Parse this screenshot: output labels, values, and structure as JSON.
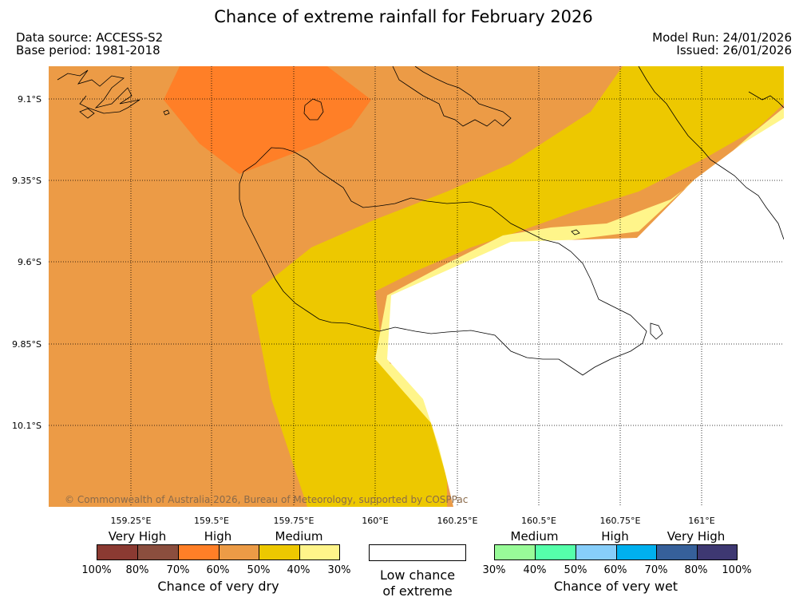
{
  "header": {
    "title": "Chance of extreme rainfall for February 2026",
    "data_source": "Data source: ACCESS-S2",
    "base_period": "Base period: 1981-2018",
    "model_run": "Model Run: 24/01/2026",
    "issued": "Issued: 26/01/2026"
  },
  "map": {
    "lat_labels": [
      "9.1°S",
      "9.35°S",
      "9.6°S",
      "9.85°S",
      "10.1°S"
    ],
    "lon_labels": [
      "159.25°E",
      "159.5°E",
      "159.75°E",
      "160°E",
      "160.25°E",
      "160.5°E",
      "160.75°E",
      "161°E"
    ],
    "copyright": "© Commonwealth of Australia 2026, Bureau of Meteorology, supported by COSPPac",
    "colors": {
      "dry_very_high": "#FF7F27",
      "dry_high": "#EC9B46",
      "dry_medium": "#EDC800",
      "dry_low": "#FFF58A",
      "land_outline": "#000000"
    }
  },
  "legend": {
    "dry": {
      "categories": [
        "Very High",
        "High",
        "Medium"
      ],
      "percents": [
        "100%",
        "80%",
        "70%",
        "60%",
        "50%",
        "40%",
        "30%"
      ],
      "colors": [
        "#8B3A32",
        "#8B4E3E",
        "#FF7F27",
        "#EC9B46",
        "#EDC800",
        "#FFF58A"
      ],
      "title": "Chance of very dry"
    },
    "low": {
      "title_line1": "Low chance",
      "title_line2": "of extreme",
      "color": "#FFFFFF"
    },
    "wet": {
      "categories": [
        "Medium",
        "High",
        "Very High"
      ],
      "percents": [
        "30%",
        "40%",
        "50%",
        "60%",
        "70%",
        "80%",
        "100%"
      ],
      "colors": [
        "#98FB98",
        "#55FFAA",
        "#87CEFA",
        "#00B0EE",
        "#36609A",
        "#3E3872"
      ],
      "title": "Chance of very wet"
    }
  }
}
